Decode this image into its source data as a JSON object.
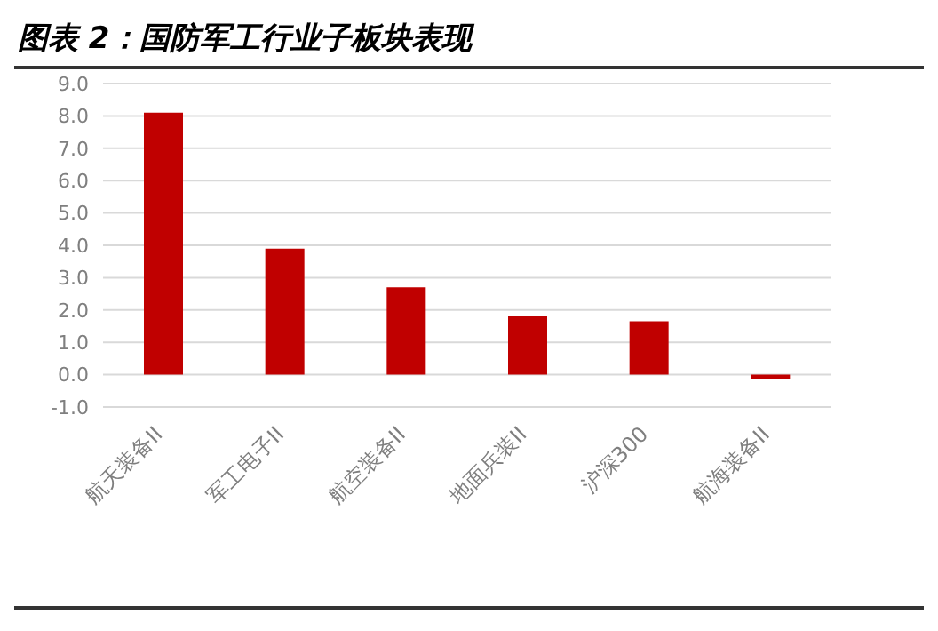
{
  "chart_data": {
    "type": "bar",
    "title": "图表 2：国防军工行业子板块表现",
    "categories": [
      "航天装备II",
      "军工电子II",
      "航空装备II",
      "地面兵装II",
      "沪深300",
      "航海装备II"
    ],
    "values": [
      8.1,
      3.9,
      2.7,
      1.8,
      1.65,
      -0.15
    ],
    "color": "#c00000",
    "ylim": [
      -1,
      9
    ],
    "yticks": [
      {
        "value": -1,
        "label": "-1.0"
      },
      {
        "value": 0,
        "label": "0.0"
      },
      {
        "value": 1,
        "label": "1.0"
      },
      {
        "value": 2,
        "label": "2.0"
      },
      {
        "value": 3,
        "label": "3.0"
      },
      {
        "value": 4,
        "label": "4.0"
      },
      {
        "value": 5,
        "label": "5.0"
      },
      {
        "value": 6,
        "label": "6.0"
      },
      {
        "value": 7,
        "label": "7.0"
      },
      {
        "value": 8,
        "label": "8.0"
      },
      {
        "value": 9,
        "label": "9.0"
      }
    ],
    "grid": "y"
  }
}
